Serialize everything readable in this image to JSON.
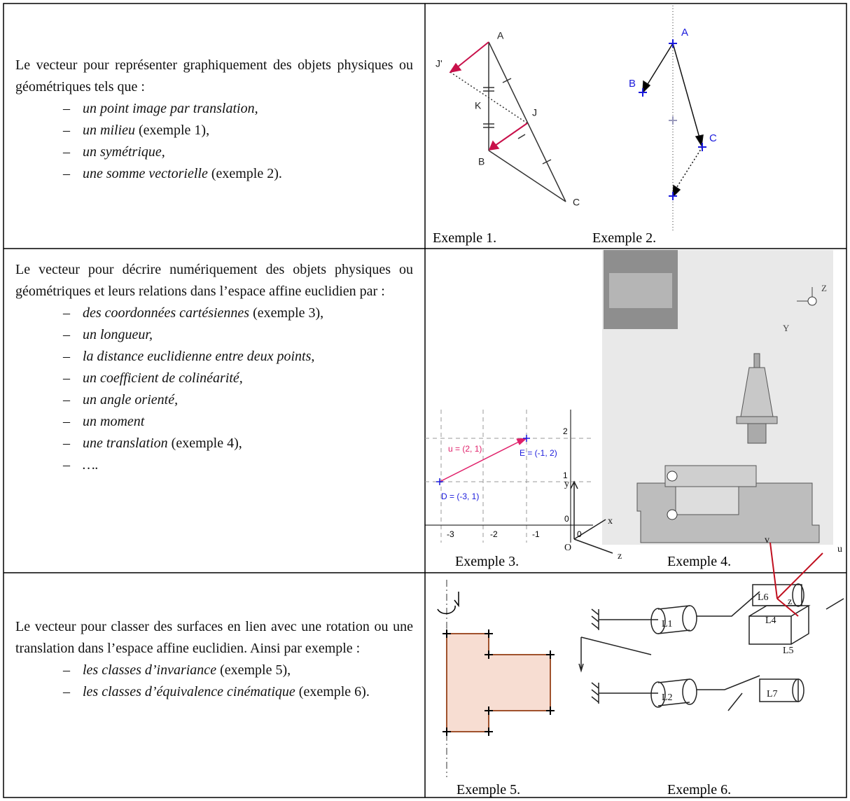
{
  "rows": [
    {
      "intro": "Le vecteur pour représenter graphiquement des objets physiques ou géométriques tels que :",
      "items": [
        {
          "italic": "un point image par translation,"
        },
        {
          "italic": "un milieu",
          "plain": " (exemple 1),"
        },
        {
          "italic": "un symétrique,"
        },
        {
          "italic": "une somme vectorielle",
          "plain": " (exemple 2)."
        }
      ],
      "captions": [
        "Exemple 1.",
        "Exemple 2."
      ]
    },
    {
      "intro": "Le vecteur pour décrire numériquement des objets physiques ou géométriques et leurs relations dans l’espace affine euclidien par :",
      "items": [
        {
          "italic": "des coordonnées cartésiennes",
          "plain": " (exemple 3),"
        },
        {
          "italic": "un longueur,"
        },
        {
          "italic": "la distance euclidienne entre  deux points,"
        },
        {
          "italic": "un coefficient de colinéarité,"
        },
        {
          "italic": "un angle orienté,"
        },
        {
          "italic": "un moment"
        },
        {
          "italic": "une translation",
          "plain": " (exemple 4),"
        },
        {
          "italic": "…."
        }
      ],
      "captions": [
        "Exemple 3.",
        "Exemple 4."
      ]
    },
    {
      "intro": "Le vecteur pour classer des surfaces en lien avec une rotation ou une translation dans l’espace affine euclidien. Ainsi par exemple :",
      "items": [
        {
          "italic": "les classes d’invariance",
          "plain": " (exemple 5),"
        },
        {
          "italic": "les classes d’équivalence cinématique",
          "plain": " (exemple 6)."
        }
      ],
      "captions": [
        "Exemple 5.",
        "Exemple 6."
      ]
    }
  ],
  "figures": {
    "example1": [
      "A",
      "J'",
      "K",
      "J",
      "B",
      "C"
    ],
    "example2": [
      "A",
      "B",
      "C"
    ],
    "example3": [
      "2",
      "1",
      "0",
      "-3",
      "-2",
      "-1",
      "0",
      "u = (2, 1)",
      "E = (-1, 2)",
      "D = (-3, 1)"
    ],
    "example4": [
      "Z",
      "Y"
    ],
    "example6": [
      "y",
      "x",
      "O",
      "z",
      "v",
      "u",
      "L6",
      "L4",
      "z",
      "L1",
      "L5",
      "L2",
      "L7"
    ]
  }
}
